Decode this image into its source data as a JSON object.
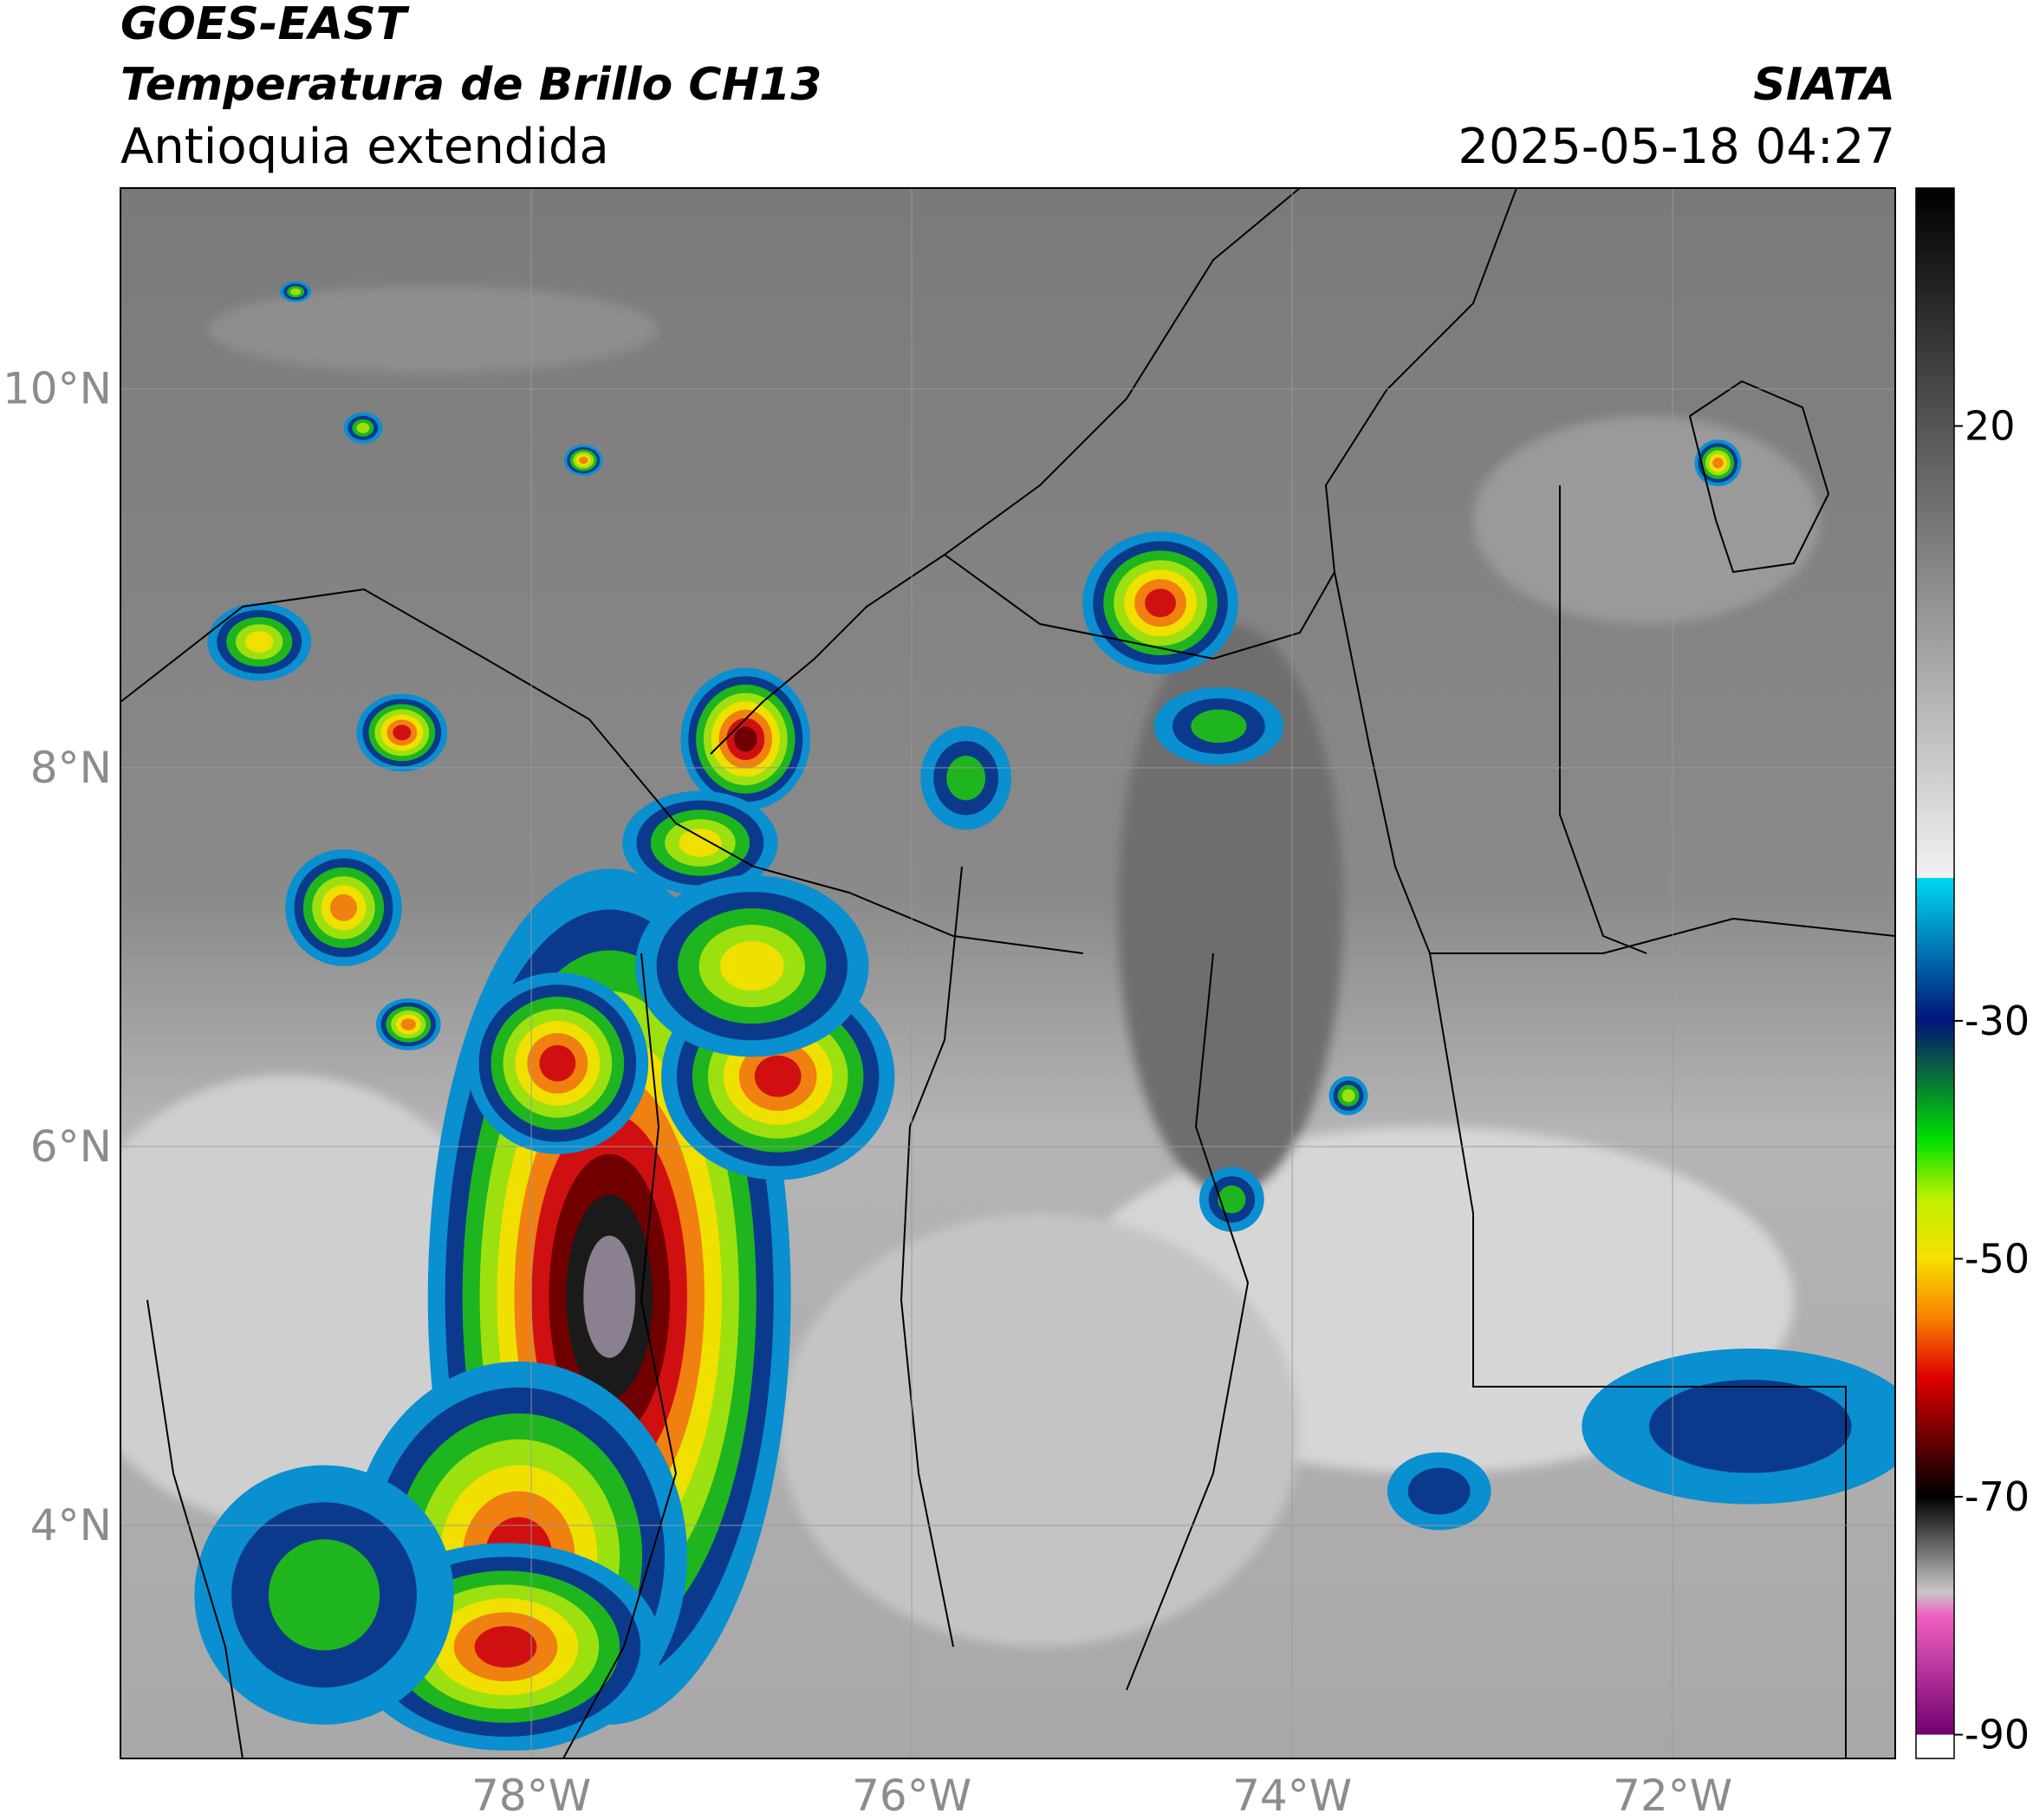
{
  "header": {
    "satellite": "GOES-EAST",
    "product": "Temperatura de Brillo CH13",
    "region": "Antioquia extendida",
    "source": "SIATA",
    "datetime": "2025-05-18 04:27"
  },
  "map": {
    "xlim": [
      -80.16,
      -70.83
    ],
    "ylim": [
      2.77,
      11.06
    ],
    "xticks": [
      {
        "value": -78,
        "label": "78°W"
      },
      {
        "value": -76,
        "label": "76°W"
      },
      {
        "value": -74,
        "label": "74°W"
      },
      {
        "value": -72,
        "label": "72°W"
      }
    ],
    "yticks": [
      {
        "value": 4,
        "label": "4°N"
      },
      {
        "value": 6,
        "label": "6°N"
      },
      {
        "value": 8,
        "label": "8°N"
      },
      {
        "value": 10,
        "label": "10°N"
      }
    ]
  },
  "colorbar": {
    "lim": [
      -92,
      40
    ],
    "ticks": [
      20,
      -30,
      -50,
      -70,
      -90
    ],
    "stops": [
      [
        40,
        "#000000"
      ],
      [
        20,
        "#555555"
      ],
      [
        -18,
        "#f2f2f2"
      ],
      [
        -18,
        "#00d8f0"
      ],
      [
        -30,
        "#00157a"
      ],
      [
        -34,
        "#0a6040"
      ],
      [
        -40,
        "#00e000"
      ],
      [
        -45,
        "#c0f000"
      ],
      [
        -50,
        "#f8e000"
      ],
      [
        -55,
        "#f88000"
      ],
      [
        -60,
        "#e00000"
      ],
      [
        -67,
        "#400000"
      ],
      [
        -70,
        "#000000"
      ],
      [
        -78,
        "#c8c8c8"
      ],
      [
        -80,
        "#f060c0"
      ],
      [
        -90,
        "#700070"
      ],
      [
        -90,
        "#ffffff"
      ],
      [
        -92,
        "#ffffff"
      ]
    ]
  }
}
